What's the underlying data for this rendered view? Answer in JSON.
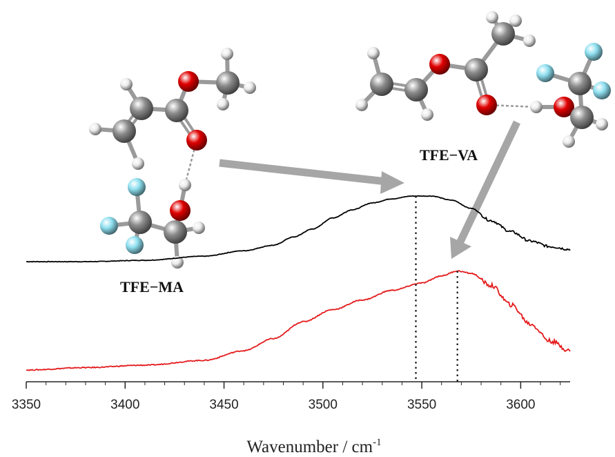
{
  "chart_data": {
    "type": "line",
    "title": "",
    "xlabel": "Wavenumber / cm",
    "xlabel_superscript": "-1",
    "ylabel": "",
    "xlim": [
      3350,
      3625
    ],
    "x_ticks": [
      3350,
      3400,
      3450,
      3500,
      3550,
      3600
    ],
    "y_axis_shown": false,
    "grid": false,
    "legend": "none",
    "series": [
      {
        "color": "#000000",
        "points": [
          [
            3350,
            0.52
          ],
          [
            3380,
            0.52
          ],
          [
            3410,
            0.53
          ],
          [
            3440,
            0.56
          ],
          [
            3460,
            0.6
          ],
          [
            3475,
            0.64
          ],
          [
            3485,
            0.7
          ],
          [
            3495,
            0.76
          ],
          [
            3505,
            0.84
          ],
          [
            3515,
            0.9
          ],
          [
            3525,
            0.95
          ],
          [
            3535,
            0.98
          ],
          [
            3545,
            1.0
          ],
          [
            3555,
            1.0
          ],
          [
            3565,
            0.97
          ],
          [
            3575,
            0.91
          ],
          [
            3585,
            0.82
          ],
          [
            3595,
            0.74
          ],
          [
            3605,
            0.67
          ],
          [
            3615,
            0.63
          ],
          [
            3625,
            0.61
          ]
        ]
      },
      {
        "color": "#e41a1c",
        "points": [
          [
            3350,
            0.0
          ],
          [
            3380,
            0.01
          ],
          [
            3410,
            0.02
          ],
          [
            3440,
            0.04
          ],
          [
            3460,
            0.08
          ],
          [
            3475,
            0.13
          ],
          [
            3490,
            0.2
          ],
          [
            3505,
            0.25
          ],
          [
            3520,
            0.29
          ],
          [
            3535,
            0.33
          ],
          [
            3550,
            0.36
          ],
          [
            3560,
            0.39
          ],
          [
            3568,
            0.41
          ],
          [
            3575,
            0.4
          ],
          [
            3585,
            0.35
          ],
          [
            3595,
            0.27
          ],
          [
            3605,
            0.19
          ],
          [
            3615,
            0.12
          ],
          [
            3625,
            0.08
          ]
        ]
      }
    ],
    "annotations": [
      {
        "type": "dotted-vline",
        "x": 3547,
        "series": 0
      },
      {
        "type": "dotted-vline",
        "x": 3568,
        "series": 1
      }
    ],
    "molecule_labels": {
      "ma": "TFE−MA",
      "va": "TFE−VA"
    },
    "arrow_color": "#a6a6a6",
    "atom_colors": {
      "carbon": "#8c8c8c",
      "oxygen": "#e00000",
      "hydrogen": "#ececec",
      "fluorine": "#8fe0f0"
    }
  }
}
